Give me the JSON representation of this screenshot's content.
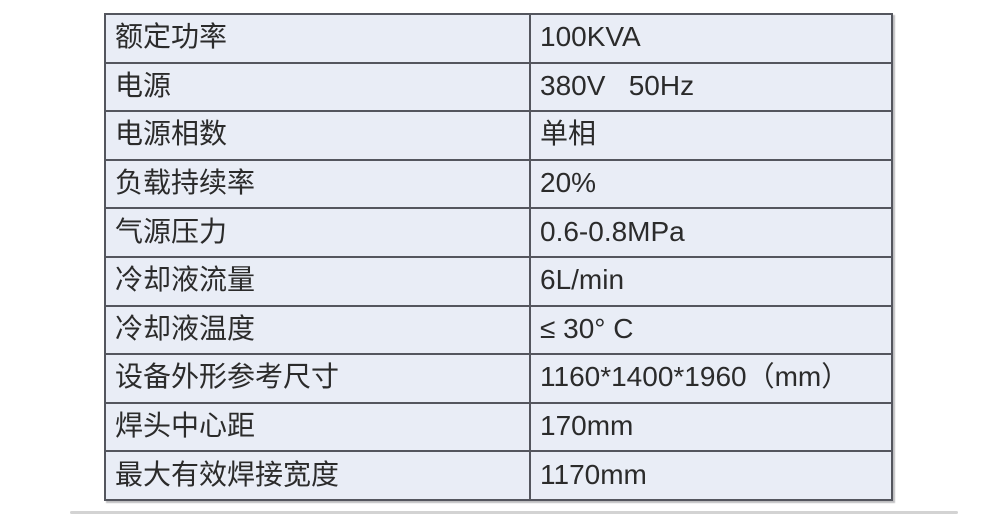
{
  "page": {
    "background_color": "#ffffff"
  },
  "table": {
    "cell_background_color": "#e9edf6",
    "border_color": "#54565e",
    "text_color": "#2b2b2b",
    "rows": [
      {
        "label": "额定功率",
        "value": "100KVA"
      },
      {
        "label": "电源",
        "value": "380V   50Hz"
      },
      {
        "label": "电源相数",
        "value": "单相"
      },
      {
        "label": "负载持续率",
        "value": "20%"
      },
      {
        "label": "气源压力",
        "value": "0.6-0.8MPa"
      },
      {
        "label": "冷却液流量",
        "value": "6L/min"
      },
      {
        "label": "冷却液温度",
        "value": "≤ 30° C"
      },
      {
        "label": "设备外形参考尺寸",
        "value": "1160*1400*1960（mm）"
      },
      {
        "label": "焊头中心距",
        "value": "170mm"
      },
      {
        "label": "最大有效焊接宽度",
        "value": "1170mm"
      }
    ]
  }
}
